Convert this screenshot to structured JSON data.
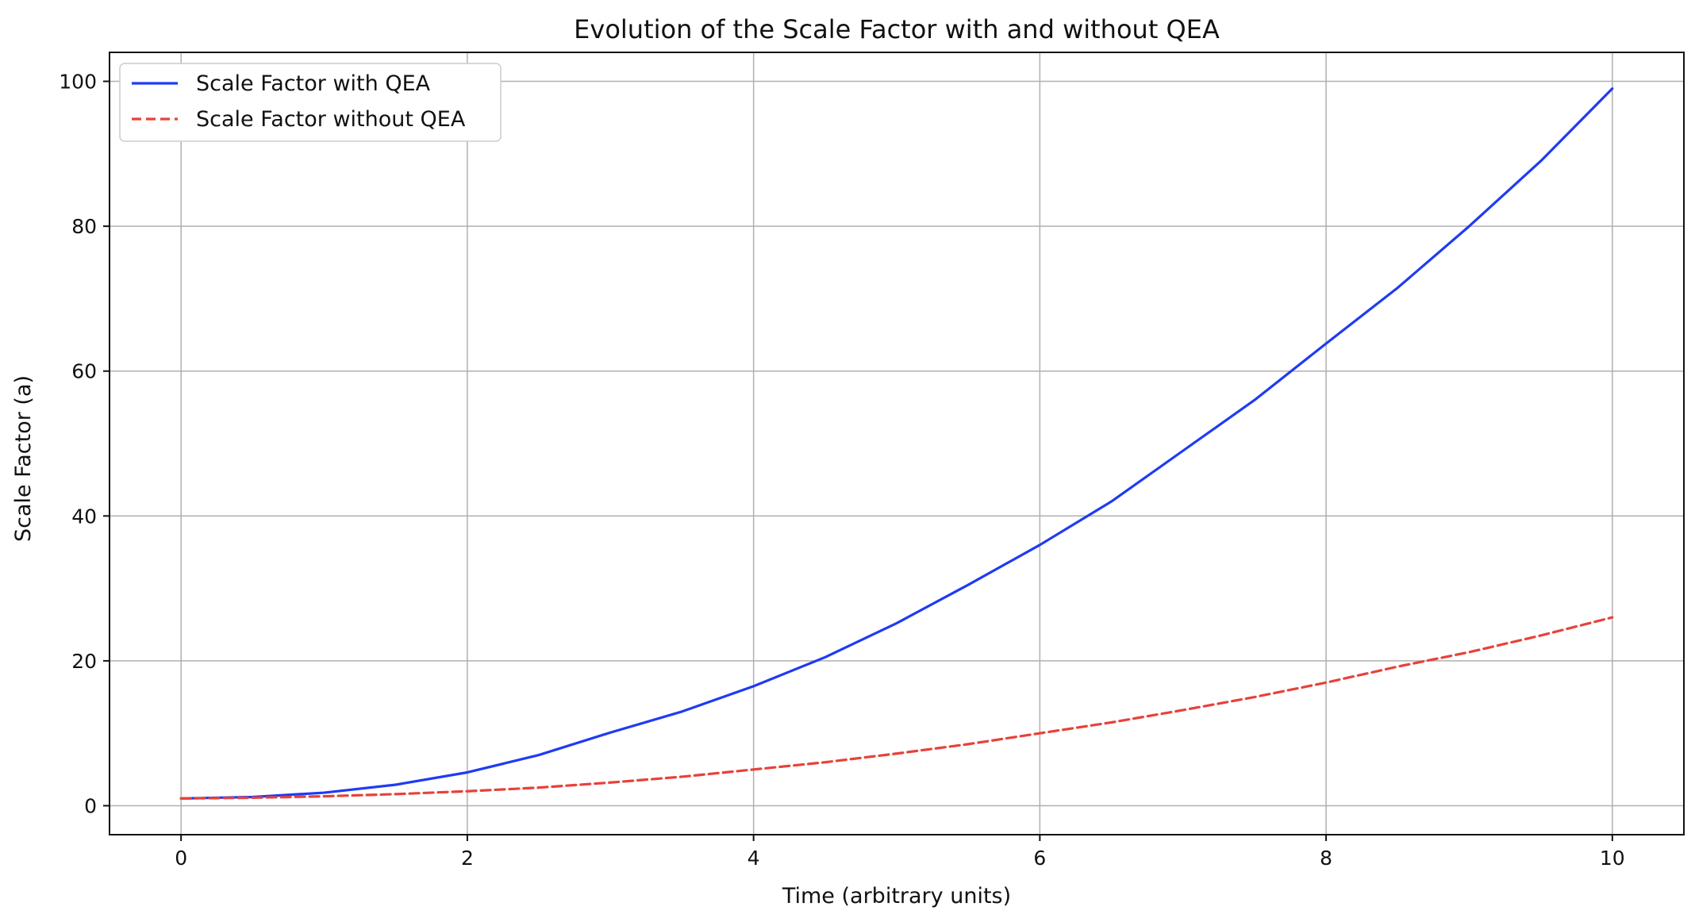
{
  "chart_data": {
    "type": "line",
    "title": "Evolution of the Scale Factor with and without QEA",
    "xlabel": "Time (arbitrary units)",
    "ylabel": "Scale Factor (a)",
    "xlim": [
      -0.5,
      10.5
    ],
    "ylim": [
      -4,
      104
    ],
    "x_ticks": [
      0,
      2,
      4,
      6,
      8,
      10
    ],
    "y_ticks": [
      0,
      20,
      40,
      60,
      80,
      100
    ],
    "grid": true,
    "legend_position": "upper-left",
    "series": [
      {
        "name": "Scale Factor with QEA",
        "color": "#1f3bf2",
        "line_style": "solid",
        "x": [
          0,
          0.5,
          1,
          1.5,
          2,
          2.5,
          3,
          3.5,
          4,
          4.5,
          5,
          5.5,
          6,
          6.5,
          7,
          7.5,
          8,
          8.5,
          9,
          9.5,
          10
        ],
        "y": [
          1,
          1.2,
          1.8,
          2.9,
          4.6,
          7.0,
          10.1,
          13.0,
          16.5,
          20.5,
          25.2,
          30.5,
          36.0,
          42.0,
          49.0,
          56.0,
          63.8,
          71.5,
          80.0,
          89.0,
          99.0
        ]
      },
      {
        "name": "Scale Factor without QEA",
        "color": "#e8413a",
        "line_style": "dashed",
        "x": [
          0,
          0.5,
          1,
          1.5,
          2,
          2.5,
          3,
          3.5,
          4,
          4.5,
          5,
          5.5,
          6,
          6.5,
          7,
          7.5,
          8,
          8.5,
          9,
          9.5,
          10
        ],
        "y": [
          1,
          1.1,
          1.3,
          1.6,
          2.0,
          2.5,
          3.2,
          4.0,
          5.0,
          6.0,
          7.2,
          8.5,
          10.0,
          11.5,
          13.2,
          15.0,
          17.0,
          19.2,
          21.2,
          23.5,
          26.0
        ]
      }
    ]
  }
}
